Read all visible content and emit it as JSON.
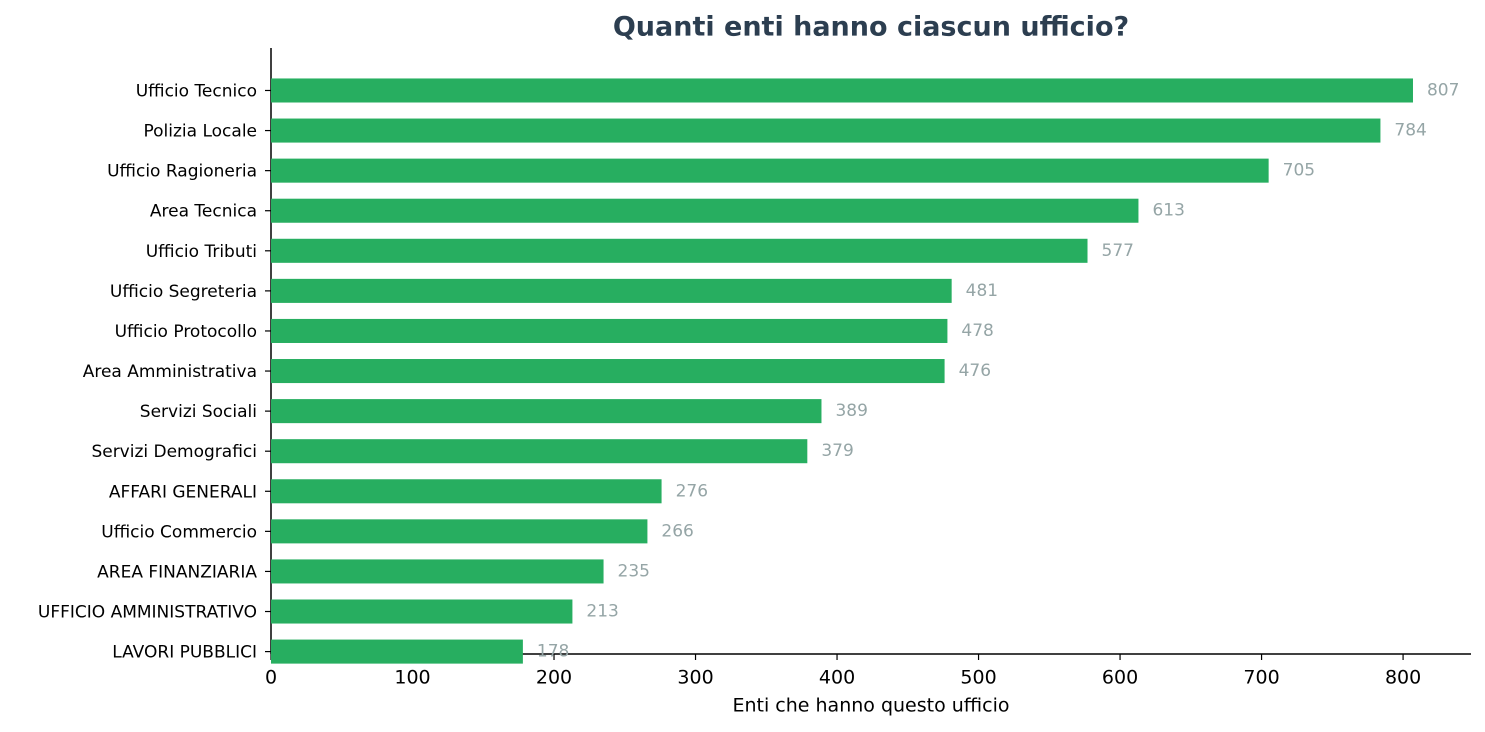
{
  "chart_data": {
    "type": "bar",
    "orientation": "horizontal",
    "title": "Quanti enti hanno ciascun ufficio?",
    "xlabel": "Enti che hanno questo ufficio",
    "categories": [
      "Ufficio Tecnico",
      "Polizia Locale",
      "Ufficio Ragioneria",
      "Area Tecnica",
      "Ufficio Tributi",
      "Ufficio Segreteria",
      "Ufficio Protocollo",
      "Area Amministrativa",
      "Servizi Sociali",
      "Servizi Demografici",
      "AFFARI GENERALI",
      "Ufficio Commercio",
      "AREA FINANZIARIA",
      "UFFICIO AMMINISTRATIVO",
      "LAVORI PUBBLICI"
    ],
    "values": [
      807,
      784,
      705,
      613,
      577,
      481,
      478,
      476,
      389,
      379,
      276,
      266,
      235,
      213,
      178
    ],
    "color": "#27ae60",
    "xlim": [
      0,
      848
    ],
    "xticks": [
      0,
      100,
      200,
      300,
      400,
      500,
      600,
      700,
      800
    ],
    "grid": false
  }
}
